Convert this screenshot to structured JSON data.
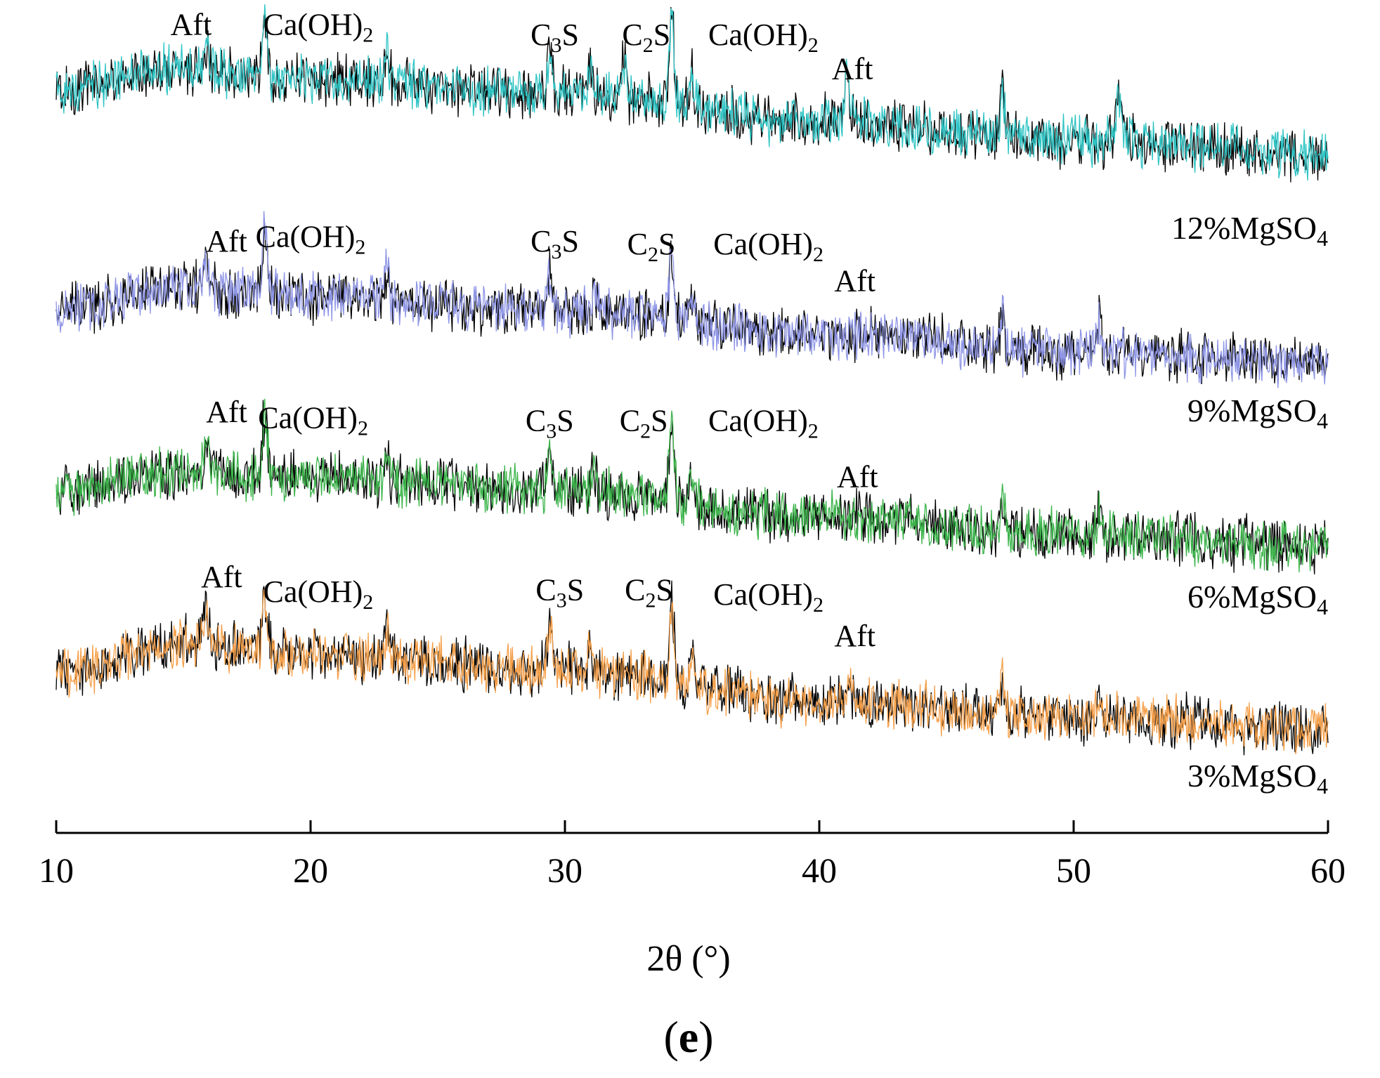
{
  "chart_data": {
    "type": "line",
    "title": "",
    "xlabel": "2θ (°)",
    "ylabel": "",
    "xlim": [
      10,
      60
    ],
    "xticks": [
      10,
      20,
      30,
      40,
      50,
      60
    ],
    "xtick_labels": [
      "10",
      "20",
      "30",
      "40",
      "50",
      "60"
    ],
    "grid": false,
    "panel_label": {
      "open": "(",
      "letter": "e",
      "close": ")"
    },
    "series": [
      {
        "name": "12%MgSO4",
        "label_main": "12%MgSO",
        "label_sub": "4",
        "color": "#2fc4c4",
        "ref_color": "#000000",
        "baseline": [
          [
            10,
            0.68
          ],
          [
            15,
            0.82
          ],
          [
            20,
            0.74
          ],
          [
            30,
            0.66
          ],
          [
            40,
            0.46
          ],
          [
            50,
            0.34
          ],
          [
            60,
            0.24
          ]
        ],
        "peaks": [
          [
            16,
            0.12
          ],
          [
            18.2,
            0.45
          ],
          [
            23,
            0.2
          ],
          [
            29.4,
            0.3
          ],
          [
            31,
            0.18
          ],
          [
            32.3,
            0.25
          ],
          [
            34.2,
            0.6
          ],
          [
            35,
            0.2
          ],
          [
            41.1,
            0.3
          ],
          [
            47.2,
            0.3
          ],
          [
            51.8,
            0.3
          ]
        ],
        "annotations": [
          {
            "main": "Aft",
            "x": 15.3,
            "y": 1.05
          },
          {
            "main": "Ca(OH)",
            "sub": "2",
            "x": 20.3,
            "y": 1.05
          },
          {
            "main": "C",
            "sub": "3",
            "tail": "S",
            "x": 29.6,
            "y": 0.98
          },
          {
            "main": "C",
            "sub": "2",
            "tail": "S",
            "x": 33.2,
            "y": 0.98
          },
          {
            "main": "Ca(OH)",
            "sub": "2",
            "x": 37.8,
            "y": 0.98
          },
          {
            "main": "Aft",
            "x": 41.3,
            "y": 0.75
          }
        ]
      },
      {
        "name": "9%MgSO4",
        "label_main": "9%MgSO",
        "label_sub": "4",
        "color": "#8f96e6",
        "ref_color": "#000000",
        "baseline": [
          [
            10,
            0.42
          ],
          [
            15,
            0.58
          ],
          [
            20,
            0.52
          ],
          [
            30,
            0.42
          ],
          [
            40,
            0.26
          ],
          [
            50,
            0.14
          ],
          [
            60,
            0.06
          ]
        ],
        "peaks": [
          [
            15.9,
            0.2
          ],
          [
            18.2,
            0.45
          ],
          [
            23,
            0.2
          ],
          [
            29.4,
            0.28
          ],
          [
            31.2,
            0.15
          ],
          [
            34.2,
            0.45
          ],
          [
            35,
            0.2
          ],
          [
            47.2,
            0.25
          ],
          [
            51,
            0.2
          ]
        ],
        "annotations": [
          {
            "main": "Aft",
            "x": 16.7,
            "y": 0.82
          },
          {
            "main": "Ca(OH)",
            "sub": "2",
            "x": 20.0,
            "y": 0.85
          },
          {
            "main": "C",
            "sub": "3",
            "tail": "S",
            "x": 29.6,
            "y": 0.82
          },
          {
            "main": "C",
            "sub": "2",
            "tail": "S",
            "x": 33.4,
            "y": 0.8
          },
          {
            "main": "Ca(OH)",
            "sub": "2",
            "x": 38.0,
            "y": 0.8
          },
          {
            "main": "Aft",
            "x": 41.4,
            "y": 0.55
          }
        ]
      },
      {
        "name": "6%MgSO4",
        "label_main": "6%MgSO",
        "label_sub": "4",
        "color": "#3cb44b",
        "ref_color": "#000000",
        "baseline": [
          [
            10,
            0.44
          ],
          [
            15,
            0.56
          ],
          [
            20,
            0.52
          ],
          [
            30,
            0.44
          ],
          [
            40,
            0.26
          ],
          [
            50,
            0.14
          ],
          [
            60,
            0.06
          ]
        ],
        "peaks": [
          [
            15.9,
            0.2
          ],
          [
            18.2,
            0.42
          ],
          [
            23,
            0.18
          ],
          [
            29.4,
            0.3
          ],
          [
            31.1,
            0.2
          ],
          [
            34.2,
            0.5
          ],
          [
            35,
            0.2
          ],
          [
            47.2,
            0.2
          ],
          [
            51,
            0.15
          ]
        ],
        "annotations": [
          {
            "main": "Aft",
            "x": 16.7,
            "y": 0.9
          },
          {
            "main": "Ca(OH)",
            "sub": "2",
            "x": 20.1,
            "y": 0.86
          },
          {
            "main": "C",
            "sub": "3",
            "tail": "S",
            "x": 29.4,
            "y": 0.84
          },
          {
            "main": "C",
            "sub": "2",
            "tail": "S",
            "x": 33.1,
            "y": 0.84
          },
          {
            "main": "Ca(OH)",
            "sub": "2",
            "x": 37.8,
            "y": 0.84
          },
          {
            "main": "Aft",
            "x": 41.5,
            "y": 0.46
          }
        ]
      },
      {
        "name": "3%MgSO4",
        "label_main": "3%MgSO",
        "label_sub": "4",
        "color": "#f5a04a",
        "ref_color": "#000000",
        "baseline": [
          [
            10,
            0.44
          ],
          [
            15,
            0.64
          ],
          [
            20,
            0.56
          ],
          [
            30,
            0.46
          ],
          [
            40,
            0.24
          ],
          [
            50,
            0.14
          ],
          [
            60,
            0.06
          ]
        ],
        "peaks": [
          [
            15.9,
            0.25
          ],
          [
            18.2,
            0.4
          ],
          [
            23,
            0.2
          ],
          [
            29.4,
            0.3
          ],
          [
            31,
            0.15
          ],
          [
            34.2,
            0.55
          ],
          [
            35,
            0.2
          ],
          [
            41.2,
            0.15
          ],
          [
            47.2,
            0.25
          ],
          [
            51,
            0.15
          ]
        ],
        "annotations": [
          {
            "main": "Aft",
            "x": 16.5,
            "y": 1.02
          },
          {
            "main": "Ca(OH)",
            "sub": "2",
            "x": 20.3,
            "y": 0.92
          },
          {
            "main": "C",
            "sub": "3",
            "tail": "S",
            "x": 29.8,
            "y": 0.93
          },
          {
            "main": "C",
            "sub": "2",
            "tail": "S",
            "x": 33.3,
            "y": 0.93
          },
          {
            "main": "Ca(OH)",
            "sub": "2",
            "x": 38.0,
            "y": 0.9
          },
          {
            "main": "Aft",
            "x": 41.4,
            "y": 0.62
          }
        ]
      }
    ]
  }
}
